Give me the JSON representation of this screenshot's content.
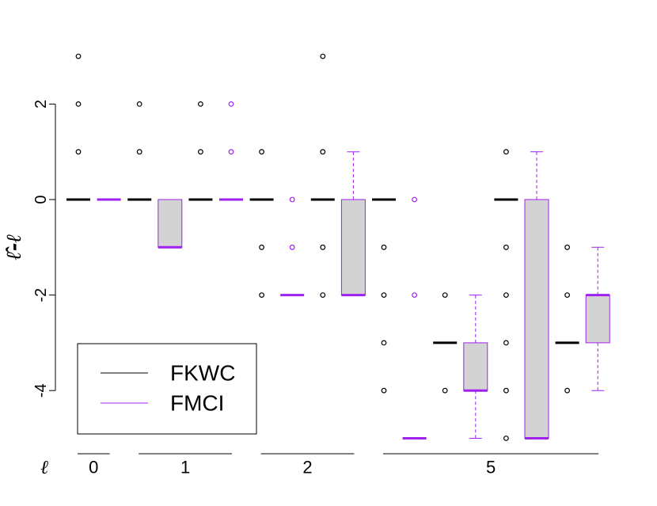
{
  "chart_data": {
    "type": "box",
    "title": "",
    "ylabel": "ℓ̂-ℓ",
    "xlabel": "",
    "ylim": [
      -5.2,
      3.2
    ],
    "yticks": [
      -4,
      -2,
      0,
      2
    ],
    "ytick_labels": [
      "-4",
      "-2",
      "0",
      "2"
    ],
    "group_prefix": "ℓ",
    "groups": [
      {
        "label": "0",
        "positions": [
          1,
          2
        ]
      },
      {
        "label": "1",
        "positions": [
          3,
          4,
          5,
          6
        ]
      },
      {
        "label": "2",
        "positions": [
          7,
          8,
          9,
          10
        ]
      },
      {
        "label": "5",
        "positions": [
          11,
          12,
          13,
          14,
          15,
          16,
          17,
          18
        ]
      }
    ],
    "legend": {
      "position": "bottom-left",
      "entries": [
        {
          "label": "FKWC",
          "color": "#000000"
        },
        {
          "label": "FMCI",
          "color": "#a020f0"
        }
      ]
    },
    "colors": {
      "FKWC": "#000000",
      "FMCI": "#a020f0",
      "box_fill": "#d3d3d3"
    },
    "boxes": [
      {
        "position": 1,
        "series": "FKWC",
        "lower_whisker": 0,
        "q1": 0,
        "median": 0,
        "q3": 0,
        "upper_whisker": 0,
        "outliers": [
          1,
          2,
          3
        ]
      },
      {
        "position": 2,
        "series": "FMCI",
        "lower_whisker": 0,
        "q1": 0,
        "median": 0,
        "q3": 0,
        "upper_whisker": 0,
        "outliers": []
      },
      {
        "position": 3,
        "series": "FKWC",
        "lower_whisker": 0,
        "q1": 0,
        "median": 0,
        "q3": 0,
        "upper_whisker": 0,
        "outliers": [
          1,
          2
        ]
      },
      {
        "position": 4,
        "series": "FMCI",
        "lower_whisker": -1,
        "q1": -1,
        "median": -1,
        "q3": 0,
        "upper_whisker": 0,
        "outliers": []
      },
      {
        "position": 5,
        "series": "FKWC",
        "lower_whisker": 0,
        "q1": 0,
        "median": 0,
        "q3": 0,
        "upper_whisker": 0,
        "outliers": [
          1,
          2
        ]
      },
      {
        "position": 6,
        "series": "FMCI",
        "lower_whisker": 0,
        "q1": 0,
        "median": 0,
        "q3": 0,
        "upper_whisker": 0,
        "outliers": [
          1,
          2
        ]
      },
      {
        "position": 7,
        "series": "FKWC",
        "lower_whisker": 0,
        "q1": 0,
        "median": 0,
        "q3": 0,
        "upper_whisker": 0,
        "outliers": [
          1,
          -1,
          -2
        ]
      },
      {
        "position": 8,
        "series": "FMCI",
        "lower_whisker": -2,
        "q1": -2,
        "median": -2,
        "q3": -2,
        "upper_whisker": -2,
        "outliers": [
          0,
          -1
        ]
      },
      {
        "position": 9,
        "series": "FKWC",
        "lower_whisker": 0,
        "q1": 0,
        "median": 0,
        "q3": 0,
        "upper_whisker": 0,
        "outliers": [
          1,
          3,
          -1,
          -2
        ]
      },
      {
        "position": 10,
        "series": "FMCI",
        "lower_whisker": -2,
        "q1": -2,
        "median": -2,
        "q3": 0,
        "upper_whisker": 1,
        "outliers": []
      },
      {
        "position": 11,
        "series": "FKWC",
        "lower_whisker": 0,
        "q1": 0,
        "median": 0,
        "q3": 0,
        "upper_whisker": 0,
        "outliers": [
          -1,
          -2,
          -3,
          -4
        ]
      },
      {
        "position": 12,
        "series": "FMCI",
        "lower_whisker": -5,
        "q1": -5,
        "median": -5,
        "q3": -5,
        "upper_whisker": -5,
        "outliers": [
          0,
          -2
        ]
      },
      {
        "position": 13,
        "series": "FKWC",
        "lower_whisker": -3,
        "q1": -3,
        "median": -3,
        "q3": -3,
        "upper_whisker": -3,
        "outliers": [
          -2,
          -4
        ]
      },
      {
        "position": 14,
        "series": "FMCI",
        "lower_whisker": -5,
        "q1": -4,
        "median": -4,
        "q3": -3,
        "upper_whisker": -2,
        "outliers": []
      },
      {
        "position": 15,
        "series": "FKWC",
        "lower_whisker": 0,
        "q1": 0,
        "median": 0,
        "q3": 0,
        "upper_whisker": 0,
        "outliers": [
          1,
          -1,
          -2,
          -3,
          -4,
          -5
        ]
      },
      {
        "position": 16,
        "series": "FMCI",
        "lower_whisker": -5,
        "q1": -5,
        "median": -5,
        "q3": 0,
        "upper_whisker": 1,
        "outliers": []
      },
      {
        "position": 17,
        "series": "FKWC",
        "lower_whisker": -3,
        "q1": -3,
        "median": -3,
        "q3": -3,
        "upper_whisker": -3,
        "outliers": [
          -1,
          -2,
          -4
        ]
      },
      {
        "position": 18,
        "series": "FMCI",
        "lower_whisker": -4,
        "q1": -3,
        "median": -2,
        "q3": -2,
        "upper_whisker": -1,
        "outliers": []
      }
    ]
  }
}
